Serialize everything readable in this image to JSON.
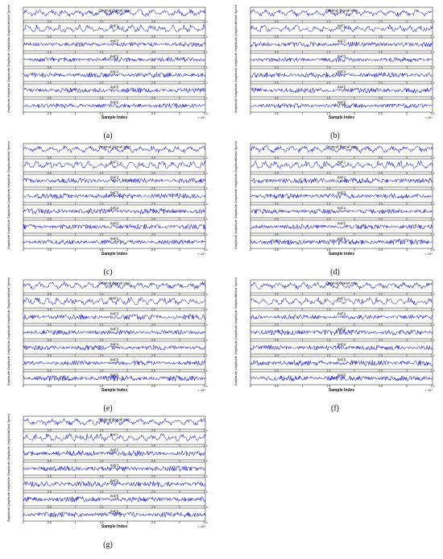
{
  "chart_data": [
    {
      "type": "line",
      "panel_label": "(a)",
      "signal_title": "Original Signal wsp",
      "series_names": [
        "Original Signal wsp",
        "IMF1",
        "IMF2",
        "IMF3",
        "IMF4",
        "IMF5",
        "IMF6"
      ],
      "ylabels": [
        "Wind Speed",
        "Amplitude",
        "Amplitude",
        "Amplitude",
        "Amplitude",
        "Amplitude",
        "Amplitude"
      ],
      "xlabel": "Sample Index",
      "x_ticks": [
        "0",
        "0.5",
        "1",
        "1.5",
        "2",
        "2.5",
        "3",
        "3.5"
      ],
      "x_exponent": "× 10⁴",
      "xlim": [
        0,
        35000
      ]
    },
    {
      "type": "line",
      "panel_label": "(b)",
      "signal_title": "Original Signal wsp",
      "series_names": [
        "Original Signal wsp",
        "IMF1",
        "IMF2",
        "IMF3",
        "IMF4",
        "IMF5",
        "IMF6"
      ],
      "ylabels": [
        "Wind Speed",
        "Amplitude",
        "Amplitude",
        "Amplitude",
        "Amplitude",
        "Amplitude",
        "Amplitude"
      ],
      "xlabel": "Sample Index",
      "x_ticks": [
        "0",
        "0.5",
        "1",
        "1.5",
        "2",
        "2.5",
        "3",
        "3.5"
      ],
      "x_exponent": "× 10⁴",
      "xlim": [
        0,
        35000
      ]
    },
    {
      "type": "line",
      "panel_label": "(c)",
      "signal_title": "Original Signal wsp",
      "series_names": [
        "Original Signal wsp",
        "IMF1",
        "IMF2",
        "IMF3",
        "IMF4",
        "IMF5",
        "IMF6"
      ],
      "ylabels": [
        "Wind Speed",
        "Amplitude",
        "Amplitude",
        "Amplitude",
        "Amplitude",
        "Amplitude",
        "Amplitude"
      ],
      "xlabel": "Sample Index",
      "x_ticks": [
        "0",
        "0.5",
        "1",
        "1.5",
        "2",
        "2.5",
        "3",
        "3.5"
      ],
      "x_exponent": "× 10⁴",
      "xlim": [
        0,
        35000
      ]
    },
    {
      "type": "line",
      "panel_label": "(d)",
      "signal_title": "Original Signal wsp",
      "series_names": [
        "Original Signal wsp",
        "IMF1",
        "IMF2",
        "IMF3",
        "IMF4",
        "IMF5",
        "IMF6"
      ],
      "ylabels": [
        "Wind Speed",
        "Amplitude",
        "Amplitude",
        "Amplitude",
        "Amplitude",
        "Amplitude",
        "Amplitude"
      ],
      "xlabel": "Sample Index",
      "x_ticks": [
        "0",
        "0.5",
        "1",
        "1.5",
        "2",
        "2.5",
        "3",
        "3.5"
      ],
      "x_exponent": "× 10⁴",
      "xlim": [
        0,
        35000
      ]
    },
    {
      "type": "line",
      "panel_label": "(e)",
      "signal_title": "Original Signal wsp",
      "series_names": [
        "Original Signal wsp",
        "IMF1",
        "IMF2",
        "IMF3",
        "IMF4",
        "IMF5",
        "IMF6"
      ],
      "ylabels": [
        "Wind Speed",
        "Amplitude",
        "Amplitude",
        "Amplitude",
        "Amplitude",
        "Amplitude",
        "Amplitude"
      ],
      "xlabel": "Sample Index",
      "x_ticks": [
        "0",
        "0.5",
        "1",
        "1.5",
        "2",
        "2.5",
        "3",
        "3.5"
      ],
      "x_exponent": "× 10⁴",
      "xlim": [
        0,
        35000
      ]
    },
    {
      "type": "line",
      "panel_label": "(f)",
      "signal_title": "Original Signal wsp",
      "series_names": [
        "Original Signal wsp",
        "IMF1",
        "IMF2",
        "IMF3",
        "IMF4",
        "IMF5",
        "IMF6"
      ],
      "ylabels": [
        "Wind Speed",
        "Amplitude",
        "Amplitude",
        "Amplitude",
        "Amplitude",
        "Amplitude",
        "Amplitude"
      ],
      "xlabel": "Sample Index",
      "x_ticks": [
        "0",
        "0.5",
        "1",
        "1.5",
        "2",
        "2.5",
        "3",
        "3.5"
      ],
      "x_exponent": "× 10⁴",
      "xlim": [
        0,
        35000
      ]
    },
    {
      "type": "line",
      "panel_label": "(g)",
      "signal_title": "Original Signal wsp",
      "series_names": [
        "Original Signal wsp",
        "IMF1",
        "IMF2",
        "IMF3",
        "IMF4",
        "IMF5",
        "IMF6"
      ],
      "ylabels": [
        "Wind Speed",
        "Amplitude",
        "Amplitude",
        "Amplitude",
        "Amplitude",
        "Amplitude",
        "Amplitude"
      ],
      "xlabel": "Sample Index",
      "x_ticks": [
        "0",
        "0.5",
        "1",
        "1.5",
        "2",
        "2.5",
        "3",
        "3.5"
      ],
      "x_exponent": "× 10⁴",
      "xlim": [
        0,
        35000
      ]
    }
  ],
  "colors": {
    "signal": "#0000cc",
    "axes": "#333333",
    "text": "#111111"
  }
}
